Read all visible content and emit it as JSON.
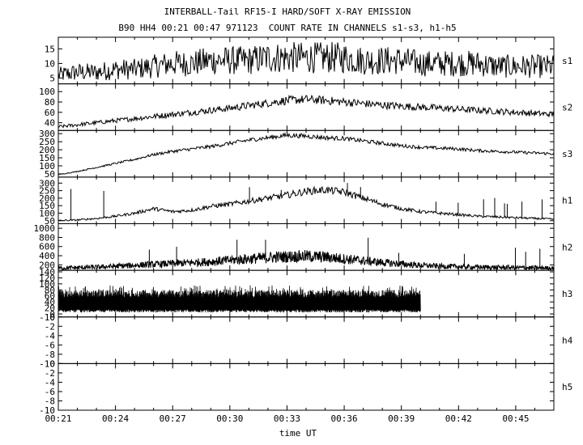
{
  "title": "INTERBALL-Tail RF15-I HARD/SOFT X-RAY EMISSION",
  "subtitle": "B90 HH4 00:21 00:47 971123  COUNT RATE IN CHANNELS s1-s3, h1-h5",
  "chart_data": {
    "type": "line",
    "xlabel": "time UT",
    "xlim": [
      "00:21",
      "00:47"
    ],
    "x_ticks": [
      "00:21",
      "00:24",
      "00:27",
      "00:30",
      "00:33",
      "00:36",
      "00:39",
      "00:42",
      "00:45"
    ],
    "grid": false,
    "panels": [
      {
        "name": "s1",
        "ylim": [
          3,
          19
        ],
        "y_ticks": [
          "5",
          "10",
          "15"
        ],
        "series": {
          "x": [
            "00:21",
            "00:22",
            "00:23",
            "00:24",
            "00:25",
            "00:26",
            "00:27",
            "00:28",
            "00:29",
            "00:30",
            "00:31",
            "00:32",
            "00:33",
            "00:34",
            "00:35",
            "00:36",
            "00:37",
            "00:38",
            "00:39",
            "00:40",
            "00:41",
            "00:42",
            "00:43",
            "00:44",
            "00:45",
            "00:46",
            "00:47"
          ],
          "y": [
            6,
            7,
            7,
            8,
            8,
            9,
            10,
            10,
            11,
            11,
            11,
            12,
            12,
            12,
            12,
            12,
            11,
            11,
            11,
            10,
            10,
            10,
            10,
            9,
            9,
            9,
            9
          ]
        }
      },
      {
        "name": "s2",
        "ylim": [
          25,
          115
        ],
        "y_ticks": [
          "40",
          "60",
          "80",
          "100"
        ],
        "series": {
          "x": [
            "00:21",
            "00:22",
            "00:23",
            "00:24",
            "00:25",
            "00:26",
            "00:27",
            "00:28",
            "00:29",
            "00:30",
            "00:31",
            "00:32",
            "00:33",
            "00:34",
            "00:35",
            "00:36",
            "00:37",
            "00:38",
            "00:39",
            "00:40",
            "00:41",
            "00:42",
            "00:43",
            "00:44",
            "00:45",
            "00:46",
            "00:47"
          ],
          "y": [
            32,
            36,
            40,
            44,
            48,
            52,
            56,
            60,
            64,
            68,
            73,
            78,
            83,
            85,
            83,
            80,
            77,
            74,
            72,
            70,
            68,
            66,
            64,
            62,
            60,
            58,
            56
          ]
        }
      },
      {
        "name": "s3",
        "ylim": [
          30,
          320
        ],
        "y_ticks": [
          "50",
          "100",
          "150",
          "200",
          "250",
          "300"
        ],
        "series": {
          "x": [
            "00:21",
            "00:22",
            "00:23",
            "00:24",
            "00:25",
            "00:26",
            "00:27",
            "00:28",
            "00:29",
            "00:30",
            "00:31",
            "00:32",
            "00:33",
            "00:34",
            "00:35",
            "00:36",
            "00:37",
            "00:38",
            "00:39",
            "00:40",
            "00:41",
            "00:42",
            "00:43",
            "00:44",
            "00:45",
            "00:46",
            "00:47"
          ],
          "y": [
            45,
            65,
            90,
            115,
            140,
            170,
            190,
            205,
            220,
            240,
            260,
            275,
            290,
            285,
            275,
            270,
            255,
            240,
            225,
            215,
            210,
            205,
            195,
            190,
            185,
            180,
            175
          ]
        }
      },
      {
        "name": "h1",
        "ylim": [
          30,
          340
        ],
        "y_ticks": [
          "50",
          "100",
          "150",
          "200",
          "250",
          "300"
        ],
        "series": {
          "x": [
            "00:21",
            "00:22",
            "00:23",
            "00:24",
            "00:25",
            "00:26",
            "00:27",
            "00:28",
            "00:29",
            "00:30",
            "00:31",
            "00:32",
            "00:33",
            "00:34",
            "00:35",
            "00:36",
            "00:37",
            "00:38",
            "00:39",
            "00:40",
            "00:41",
            "00:42",
            "00:43",
            "00:44",
            "00:45",
            "00:46",
            "00:47"
          ],
          "y": [
            50,
            55,
            65,
            80,
            100,
            130,
            110,
            120,
            145,
            160,
            180,
            200,
            220,
            245,
            255,
            240,
            200,
            160,
            130,
            110,
            100,
            90,
            80,
            75,
            70,
            65,
            60
          ]
        }
      },
      {
        "name": "h2",
        "ylim": [
          80,
          1100
        ],
        "y_ticks": [
          "200",
          "400",
          "600",
          "800",
          "1000"
        ],
        "series": {
          "x": [
            "00:21",
            "00:22",
            "00:23",
            "00:24",
            "00:25",
            "00:26",
            "00:27",
            "00:28",
            "00:29",
            "00:30",
            "00:31",
            "00:32",
            "00:33",
            "00:34",
            "00:35",
            "00:36",
            "00:37",
            "00:38",
            "00:39",
            "00:40",
            "00:41",
            "00:42",
            "00:43",
            "00:44",
            "00:45",
            "00:46",
            "00:47"
          ],
          "y": [
            130,
            140,
            150,
            170,
            190,
            210,
            230,
            250,
            270,
            300,
            330,
            360,
            380,
            390,
            370,
            330,
            290,
            250,
            220,
            190,
            170,
            160,
            150,
            145,
            140,
            135,
            130
          ]
        }
      },
      {
        "name": "h3",
        "ylim": [
          -10,
          145
        ],
        "y_ticks": [
          "-10",
          "0",
          "20",
          "40",
          "60",
          "80",
          "100",
          "120",
          "140"
        ],
        "series": {
          "x": [
            "00:21",
            "00:22",
            "00:23",
            "00:24",
            "00:25",
            "00:26",
            "00:27",
            "00:28",
            "00:29",
            "00:30",
            "00:31",
            "00:32",
            "00:33",
            "00:34",
            "00:35",
            "00:36",
            "00:37",
            "00:38",
            "00:39",
            "00:40"
          ],
          "y": [
            30,
            30,
            30,
            30,
            30,
            30,
            30,
            30,
            30,
            30,
            30,
            30,
            30,
            30,
            30,
            30,
            30,
            30,
            30,
            30
          ]
        }
      },
      {
        "name": "h4",
        "ylim": [
          0,
          -10
        ],
        "y_ticks": [
          "-10",
          "-8",
          "-6",
          "-4",
          "-2",
          "0"
        ],
        "series": {
          "x": [],
          "y": []
        }
      },
      {
        "name": "h5",
        "ylim": [
          0,
          -10
        ],
        "y_ticks": [
          "-10",
          "-8",
          "-6",
          "-4",
          "-2",
          "0"
        ],
        "series": {
          "x": [],
          "y": []
        }
      }
    ]
  }
}
